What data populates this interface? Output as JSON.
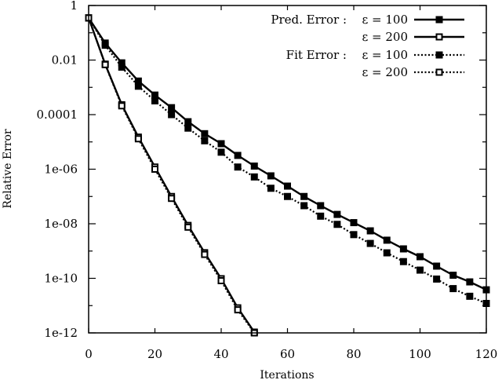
{
  "chart_data": {
    "type": "line",
    "title": "",
    "xlabel": "Iterations",
    "ylabel": "Relative Error",
    "xlim": [
      0,
      120
    ],
    "ylim": [
      1e-12,
      1
    ],
    "yscale": "log",
    "grid": false,
    "legend_position": "upper right",
    "x_ticks": [
      "0",
      "20",
      "40",
      "60",
      "80",
      "100",
      "120"
    ],
    "x_tick_values": [
      0,
      20,
      40,
      60,
      80,
      100,
      120
    ],
    "y_ticks": [
      "1",
      "0.01",
      "0.0001",
      "1e-06",
      "1e-08",
      "1e-10",
      "1e-12"
    ],
    "y_tick_values": [
      1,
      0.01,
      0.0001,
      1e-06,
      1e-08,
      1e-10,
      1e-12
    ],
    "series": [
      {
        "name": "Pred. Error : ε = 100",
        "style": "solid",
        "marker": "filled-square",
        "x": [
          0,
          5,
          10,
          15,
          20,
          25,
          30,
          35,
          40,
          45,
          50,
          55,
          60,
          65,
          70,
          75,
          80,
          85,
          90,
          95,
          100,
          105,
          110,
          115,
          120
        ],
        "values": [
          0.35,
          0.042,
          0.0079,
          0.0017,
          0.00052,
          0.00018,
          5.5e-05,
          2e-05,
          8.6e-06,
          3.2e-06,
          1.3e-06,
          5.7e-07,
          2.4e-07,
          1e-07,
          4.6e-08,
          2.2e-08,
          1.1e-08,
          5.5e-09,
          2.5e-09,
          1.2e-09,
          6.2e-10,
          2.8e-10,
          1.3e-10,
          7.4e-11,
          3.8e-11
        ]
      },
      {
        "name": "ε = 200",
        "group": "Pred. Error",
        "style": "solid",
        "marker": "hollow-square",
        "x": [
          0,
          5,
          10,
          15,
          20,
          25,
          30,
          35,
          40,
          45,
          50
        ],
        "values": [
          0.35,
          0.0071,
          0.00023,
          1.5e-05,
          1.2e-06,
          1e-07,
          8.7e-09,
          8.7e-10,
          9.7e-11,
          8.3e-12,
          1.07e-12
        ]
      },
      {
        "name": "Fit Error : ε = 100",
        "style": "dotted",
        "marker": "filled-square",
        "x": [
          0,
          5,
          10,
          15,
          20,
          25,
          30,
          35,
          40,
          45,
          50,
          55,
          60,
          65,
          70,
          75,
          80,
          85,
          90,
          95,
          100,
          105,
          110,
          115,
          120
        ],
        "values": [
          0.35,
          0.035,
          0.0055,
          0.0011,
          0.00032,
          0.0001,
          3.2e-05,
          1.1e-05,
          4.2e-06,
          1.2e-06,
          5.2e-07,
          2e-07,
          1e-07,
          4.6e-08,
          1.9e-08,
          9.5e-09,
          4e-09,
          1.9e-09,
          8.6e-10,
          4.1e-10,
          2e-10,
          9.4e-11,
          4.2e-11,
          2.2e-11,
          1.2e-11
        ]
      },
      {
        "name": "ε = 200",
        "group": "Fit Error",
        "style": "dotted",
        "marker": "hollow-square",
        "x": [
          0,
          5,
          10,
          15,
          20,
          25,
          30,
          35,
          40,
          45,
          50
        ],
        "values": [
          0.35,
          0.0068,
          0.00021,
          1.3e-05,
          1e-06,
          8.5e-08,
          7.5e-09,
          7.5e-10,
          8.2e-11,
          7e-12,
          1e-12
        ]
      }
    ],
    "legend": [
      {
        "prefix": "Pred. Error :",
        "label": "ε = 100"
      },
      {
        "prefix": "",
        "label": "ε = 200"
      },
      {
        "prefix": "Fit Error :",
        "label": "ε = 100"
      },
      {
        "prefix": "",
        "label": "ε = 200"
      }
    ]
  }
}
